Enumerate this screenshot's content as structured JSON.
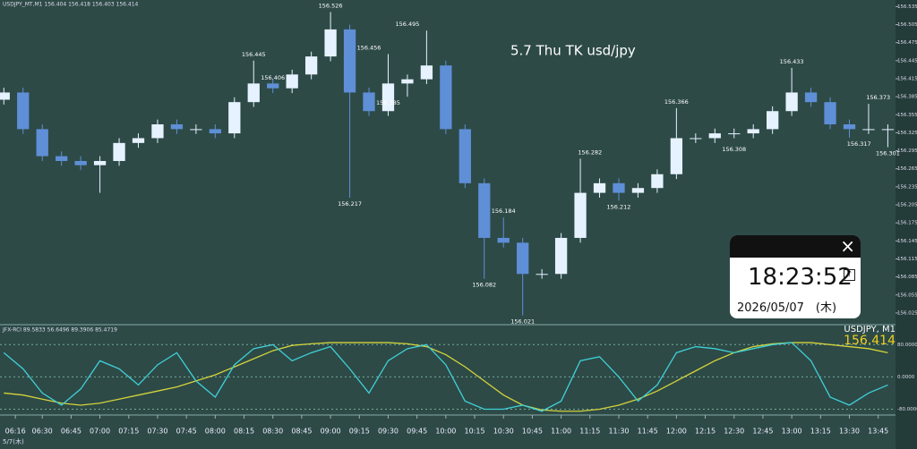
{
  "header": "USDJPY_MT,M1  156.404 156.418 156.403 156.414",
  "chart_data": [
    {
      "type": "candlestick",
      "title": "5.7 Thu TK usd/jpy",
      "x": [
        370,
        380,
        390,
        400,
        410,
        420,
        430,
        440,
        450,
        460,
        470,
        480,
        490,
        500,
        510,
        520,
        530,
        540,
        550,
        560,
        570,
        580,
        590,
        600,
        610,
        620,
        630,
        640,
        650,
        660,
        670,
        680,
        690,
        700,
        710,
        720,
        730,
        740,
        750,
        760,
        770,
        780,
        790,
        800,
        810,
        820,
        830
      ],
      "open": [
        156.38,
        156.392,
        156.331,
        156.286,
        156.278,
        156.271,
        156.278,
        156.308,
        156.316,
        156.339,
        156.331,
        156.331,
        156.324,
        156.376,
        156.407,
        156.399,
        156.422,
        156.452,
        156.497,
        156.392,
        156.361,
        156.407,
        156.414,
        156.437,
        156.331,
        156.241,
        156.15,
        156.142,
        156.09,
        156.09,
        156.15,
        156.225,
        156.241,
        156.225,
        156.233,
        156.256,
        156.316,
        156.316,
        156.324,
        156.324,
        156.331,
        156.361,
        156.392,
        156.376,
        156.339,
        156.331,
        156.331
      ],
      "high": [
        156.4,
        156.4,
        156.339,
        156.294,
        156.286,
        156.286,
        156.316,
        156.324,
        156.347,
        156.347,
        156.339,
        156.339,
        156.384,
        156.445,
        156.415,
        156.43,
        156.46,
        156.526,
        156.505,
        156.4,
        156.456,
        156.422,
        156.495,
        156.445,
        156.339,
        156.249,
        156.184,
        156.15,
        156.098,
        156.158,
        156.282,
        156.249,
        156.249,
        156.241,
        156.264,
        156.366,
        156.324,
        156.332,
        156.332,
        156.339,
        156.369,
        156.433,
        156.4,
        156.384,
        156.347,
        156.373,
        156.339
      ],
      "low": [
        156.372,
        156.323,
        156.278,
        156.27,
        156.263,
        156.225,
        156.27,
        156.3,
        156.308,
        156.323,
        156.323,
        156.316,
        156.316,
        156.368,
        156.391,
        156.391,
        156.414,
        156.444,
        156.217,
        156.353,
        156.353,
        156.385,
        156.406,
        156.323,
        156.233,
        156.082,
        156.134,
        156.021,
        156.082,
        156.082,
        156.142,
        156.217,
        156.212,
        156.217,
        156.225,
        156.248,
        156.308,
        156.308,
        156.316,
        156.316,
        156.323,
        156.353,
        156.368,
        156.331,
        156.317,
        156.323,
        156.301
      ],
      "close": [
        156.392,
        156.331,
        156.286,
        156.278,
        156.271,
        156.278,
        156.308,
        156.316,
        156.339,
        156.331,
        156.331,
        156.324,
        156.376,
        156.407,
        156.399,
        156.422,
        156.452,
        156.497,
        156.392,
        156.361,
        156.407,
        156.414,
        156.437,
        156.331,
        156.241,
        156.15,
        156.142,
        156.09,
        156.09,
        156.15,
        156.225,
        156.241,
        156.225,
        156.233,
        156.256,
        156.316,
        156.316,
        156.324,
        156.324,
        156.331,
        156.361,
        156.392,
        156.376,
        156.339,
        156.331,
        156.331,
        156.331
      ],
      "up_color": "#e6f2ff",
      "down_color": "#5f8fd6",
      "annotations": [
        {
          "x": 540,
          "y": 156.526
        },
        {
          "x": 550,
          "y": 156.217
        },
        {
          "x": 500,
          "y": 156.445
        },
        {
          "x": 510,
          "y": 156.406
        },
        {
          "x": 560,
          "y": 156.456
        },
        {
          "x": 580,
          "y": 156.495
        },
        {
          "x": 570,
          "y": 156.385
        },
        {
          "x": 620,
          "y": 156.082
        },
        {
          "x": 630,
          "y": 156.184
        },
        {
          "x": 640,
          "y": 156.021
        },
        {
          "x": 675,
          "y": 156.282
        },
        {
          "x": 690,
          "y": 156.212
        },
        {
          "x": 720,
          "y": 156.366
        },
        {
          "x": 750,
          "y": 156.308
        },
        {
          "x": 780,
          "y": 156.433
        },
        {
          "x": 815,
          "y": 156.317
        },
        {
          "x": 825,
          "y": 156.373
        },
        {
          "x": 830,
          "y": 156.301
        }
      ],
      "xlim": [
        368,
        834
      ],
      "xticks": [
        {
          "value": 376,
          "label": "06:16"
        },
        {
          "value": 390,
          "label": "06:30"
        },
        {
          "value": 405,
          "label": "06:45"
        },
        {
          "value": 420,
          "label": "07:00"
        },
        {
          "value": 435,
          "label": "07:15"
        },
        {
          "value": 450,
          "label": "07:30"
        },
        {
          "value": 465,
          "label": "07:45"
        },
        {
          "value": 480,
          "label": "08:00"
        },
        {
          "value": 495,
          "label": "08:15"
        },
        {
          "value": 510,
          "label": "08:30"
        },
        {
          "value": 525,
          "label": "08:45"
        },
        {
          "value": 540,
          "label": "09:00"
        },
        {
          "value": 555,
          "label": "09:15"
        },
        {
          "value": 570,
          "label": "09:30"
        },
        {
          "value": 585,
          "label": "09:45"
        },
        {
          "value": 600,
          "label": "10:00"
        },
        {
          "value": 615,
          "label": "10:15"
        },
        {
          "value": 630,
          "label": "10:30"
        },
        {
          "value": 645,
          "label": "10:45"
        },
        {
          "value": 660,
          "label": "11:00"
        },
        {
          "value": 675,
          "label": "11:15"
        },
        {
          "value": 690,
          "label": "11:30"
        },
        {
          "value": 705,
          "label": "11:45"
        },
        {
          "value": 720,
          "label": "12:00"
        },
        {
          "value": 735,
          "label": "12:15"
        },
        {
          "value": 750,
          "label": "12:30"
        },
        {
          "value": 765,
          "label": "12:45"
        },
        {
          "value": 780,
          "label": "13:00"
        },
        {
          "value": 795,
          "label": "13:15"
        },
        {
          "value": 810,
          "label": "13:30"
        },
        {
          "value": 825,
          "label": "13:45"
        }
      ],
      "ylim": [
        156.01,
        156.543
      ],
      "yticks": [
        156.535,
        156.505,
        156.475,
        156.445,
        156.415,
        156.385,
        156.355,
        156.325,
        156.295,
        156.265,
        156.235,
        156.205,
        156.175,
        156.145,
        156.115,
        156.085,
        156.055,
        156.025
      ]
    },
    {
      "type": "line",
      "title": "JFX-RCI 89.5833 56.6496 89.3906 85.4719",
      "x": [
        370,
        380,
        390,
        400,
        410,
        420,
        430,
        440,
        450,
        460,
        470,
        480,
        490,
        500,
        510,
        520,
        530,
        540,
        550,
        560,
        570,
        580,
        590,
        600,
        610,
        620,
        630,
        640,
        650,
        660,
        670,
        680,
        690,
        700,
        710,
        720,
        730,
        740,
        750,
        760,
        770,
        780,
        790,
        800,
        810,
        820,
        830
      ],
      "series": [
        {
          "color": "#d4d43a",
          "values": [
            -40,
            -45,
            -55,
            -65,
            -70,
            -65,
            -55,
            -45,
            -35,
            -25,
            -10,
            5,
            25,
            45,
            65,
            78,
            82,
            85,
            85,
            85,
            85,
            82,
            75,
            55,
            25,
            -10,
            -45,
            -70,
            -82,
            -85,
            -85,
            -80,
            -70,
            -55,
            -35,
            -10,
            15,
            40,
            60,
            75,
            82,
            85,
            85,
            80,
            75,
            70,
            60
          ]
        },
        {
          "color": "#3fd0d8",
          "values": [
            60,
            20,
            -40,
            -70,
            -30,
            40,
            20,
            -20,
            30,
            60,
            -10,
            -50,
            30,
            70,
            80,
            40,
            60,
            75,
            20,
            -40,
            40,
            70,
            80,
            30,
            -60,
            -80,
            -80,
            -70,
            -85,
            -60,
            40,
            50,
            0,
            -60,
            -20,
            60,
            75,
            70,
            60,
            70,
            80,
            85,
            40,
            -50,
            -70,
            -40,
            -20
          ]
        }
      ],
      "xlim": [
        368,
        834
      ],
      "ylim": [
        -90,
        125
      ],
      "yticks": [
        {
          "value": 80,
          "label": "80.0000"
        },
        {
          "value": 0,
          "label": "0.0000"
        },
        {
          "value": -80,
          "label": "-80.0000"
        }
      ]
    }
  ],
  "overlay": {
    "symbol": "USDJPY, M1",
    "price": "156.414"
  },
  "date_label": "5/7(木)",
  "clock": {
    "close": "×",
    "time": "18:23:52",
    "pin": "⇡",
    "date": "2026/05/07　(木)"
  }
}
